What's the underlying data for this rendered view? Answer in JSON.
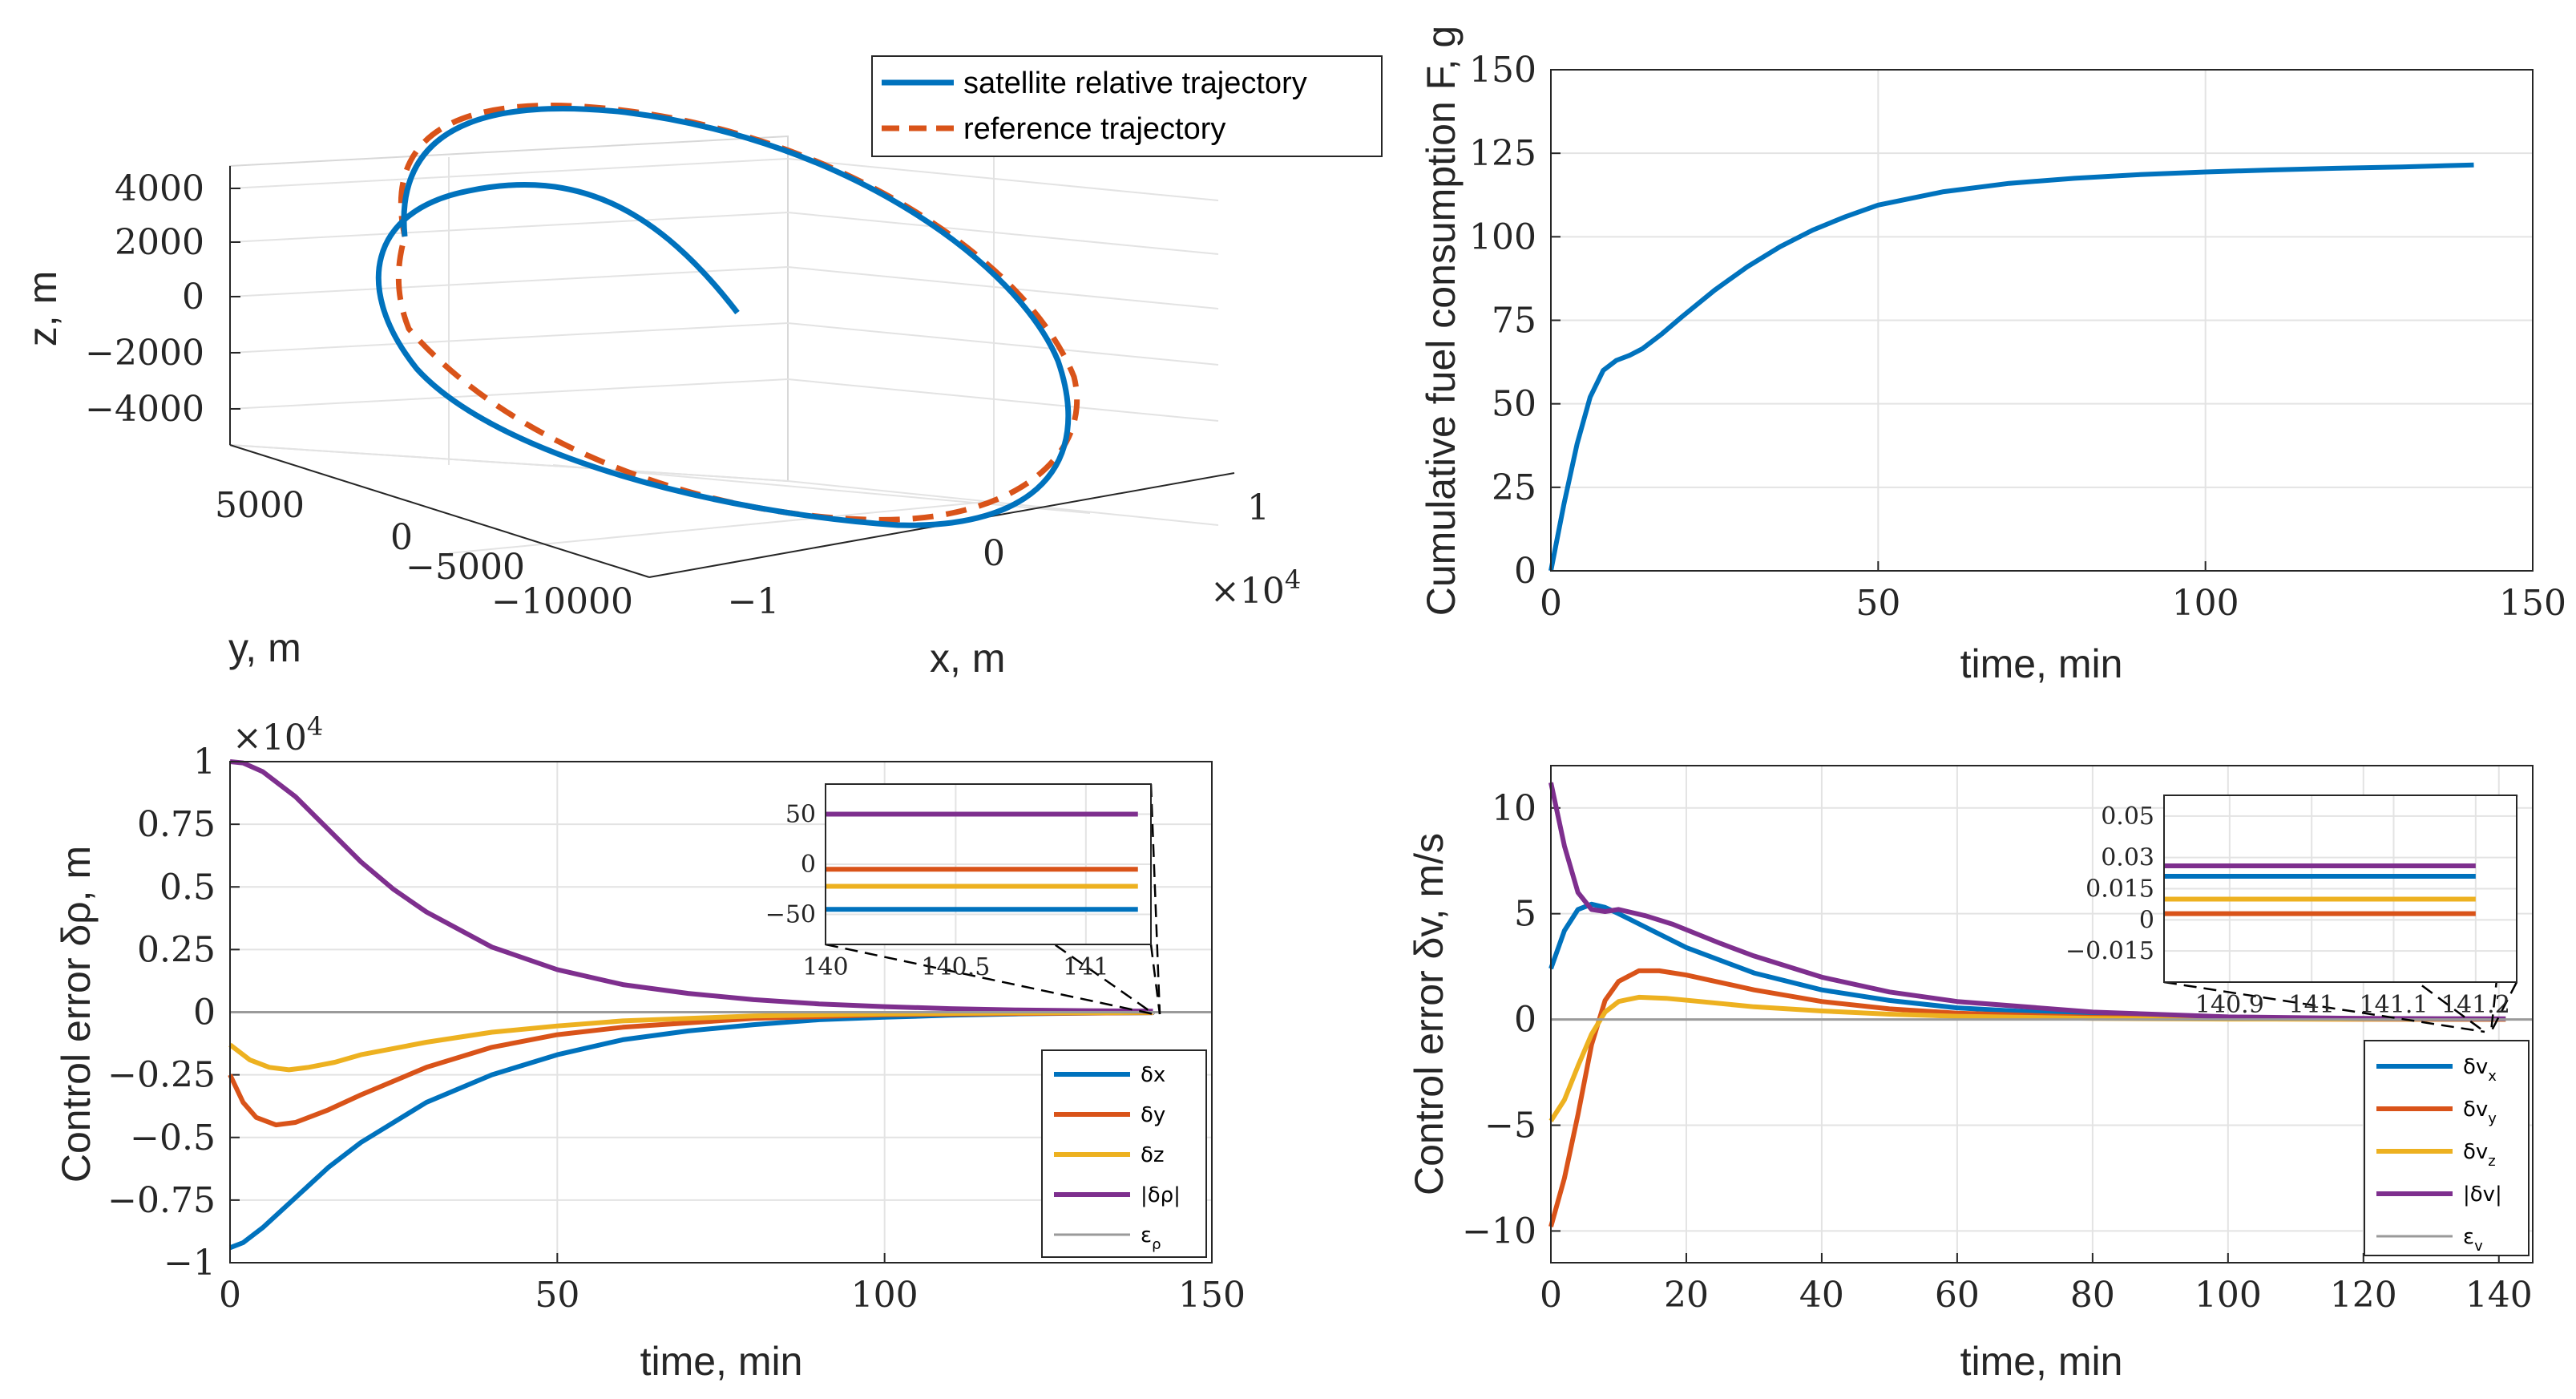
{
  "colors": {
    "blue": "#0072BD",
    "orange": "#D95319",
    "yellow": "#EDB120",
    "purple": "#7E2F8E",
    "gray": "#9a9a9a"
  },
  "chart_data": [
    {
      "id": "tr",
      "type": "line",
      "title": "",
      "xlabel": "time, min",
      "ylabel": "Cumulative fuel consumption F, g",
      "xlim": [
        0,
        150
      ],
      "ylim": [
        0,
        150
      ],
      "xticks": [
        "0",
        "50",
        "100",
        "150"
      ],
      "yticks": [
        "0",
        "25",
        "50",
        "75",
        "100",
        "125",
        "150"
      ],
      "series": [
        {
          "name": "F",
          "color": "blue",
          "x": [
            0,
            2,
            4,
            6,
            8,
            10,
            12,
            14,
            17,
            20,
            25,
            30,
            35,
            40,
            45,
            50,
            60,
            70,
            80,
            90,
            100,
            110,
            120,
            130,
            141
          ],
          "y": [
            0,
            20,
            38,
            52,
            60,
            63,
            64.5,
            66.5,
            71,
            76,
            84,
            91,
            97,
            102,
            106,
            109.5,
            113.5,
            116,
            117.5,
            118.6,
            119.4,
            120,
            120.5,
            120.9,
            121.5
          ]
        }
      ]
    },
    {
      "id": "bl",
      "type": "line",
      "title": "",
      "xlabel": "time, min",
      "ylabel": "Control error δρ, m",
      "exponent": "×10",
      "exponent_power": "4",
      "xlim": [
        0,
        150
      ],
      "ylim": [
        -1,
        1
      ],
      "xticks": [
        "0",
        "50",
        "100",
        "150"
      ],
      "yticks": [
        "−1",
        "−0.75",
        "−0.5",
        "−0.25",
        "0",
        "0.25",
        "0.5",
        "0.75",
        "1"
      ],
      "legend": [
        {
          "label": "δx",
          "color": "blue"
        },
        {
          "label": "δy",
          "color": "orange"
        },
        {
          "label": "δz",
          "color": "yellow"
        },
        {
          "label": "|δρ|",
          "color": "purple"
        },
        {
          "label": "ε",
          "sub": "ρ",
          "color": "gray"
        }
      ],
      "series": [
        {
          "name": "δx",
          "color": "blue",
          "x": [
            0,
            2,
            5,
            10,
            15,
            20,
            30,
            40,
            50,
            60,
            70,
            80,
            90,
            100,
            110,
            120,
            130,
            141
          ],
          "y": [
            -0.94,
            -0.92,
            -0.86,
            -0.74,
            -0.62,
            -0.52,
            -0.36,
            -0.25,
            -0.17,
            -0.11,
            -0.075,
            -0.05,
            -0.03,
            -0.02,
            -0.012,
            -0.007,
            -0.004,
            -0.002
          ]
        },
        {
          "name": "δy",
          "color": "orange",
          "x": [
            0,
            2,
            4,
            7,
            10,
            15,
            20,
            30,
            40,
            50,
            60,
            80,
            100,
            120,
            141
          ],
          "y": [
            -0.25,
            -0.36,
            -0.42,
            -0.45,
            -0.44,
            -0.39,
            -0.33,
            -0.22,
            -0.14,
            -0.09,
            -0.06,
            -0.025,
            -0.01,
            -0.005,
            -0.002
          ]
        },
        {
          "name": "δz",
          "color": "yellow",
          "x": [
            0,
            3,
            6,
            9,
            12,
            16,
            20,
            30,
            40,
            50,
            60,
            80,
            100,
            120,
            141
          ],
          "y": [
            -0.13,
            -0.19,
            -0.22,
            -0.23,
            -0.22,
            -0.2,
            -0.17,
            -0.12,
            -0.08,
            -0.055,
            -0.035,
            -0.015,
            -0.007,
            -0.003,
            -0.001
          ]
        },
        {
          "name": "|δρ|",
          "color": "purple",
          "x": [
            0,
            2,
            5,
            10,
            15,
            20,
            25,
            30,
            40,
            50,
            60,
            70,
            80,
            90,
            100,
            110,
            120,
            130,
            141
          ],
          "y": [
            1.0,
            0.995,
            0.96,
            0.86,
            0.73,
            0.6,
            0.49,
            0.4,
            0.26,
            0.17,
            0.11,
            0.075,
            0.05,
            0.033,
            0.022,
            0.014,
            0.009,
            0.006,
            0.004
          ]
        },
        {
          "name": "ε",
          "color": "gray",
          "x": [
            0,
            150
          ],
          "y": [
            0,
            0
          ]
        }
      ],
      "inset": {
        "xlim": [
          140,
          141.25
        ],
        "ylim": [
          -80,
          80
        ],
        "xticks": [
          "140",
          "140.5",
          "141"
        ],
        "yticks": [
          "−50",
          "0",
          "50"
        ],
        "series": [
          {
            "name": "|δρ|",
            "color": "purple",
            "y": 50
          },
          {
            "name": "δy",
            "color": "orange",
            "y": -5
          },
          {
            "name": "δz",
            "color": "yellow",
            "y": -22
          },
          {
            "name": "δx",
            "color": "blue",
            "y": -45
          }
        ]
      }
    },
    {
      "id": "br",
      "type": "line",
      "title": "",
      "xlabel": "time, min",
      "ylabel": "Control error δv, m/s",
      "xlim": [
        0,
        145
      ],
      "ylim": [
        -11.5,
        12
      ],
      "xticks": [
        "0",
        "20",
        "40",
        "60",
        "80",
        "100",
        "120",
        "140"
      ],
      "yticks": [
        "−10",
        "−5",
        "0",
        "5",
        "10"
      ],
      "legend": [
        {
          "label": "δv",
          "sub": "x",
          "color": "blue"
        },
        {
          "label": "δv",
          "sub": "y",
          "color": "orange"
        },
        {
          "label": "δv",
          "sub": "z",
          "color": "yellow"
        },
        {
          "label": "|δv|",
          "color": "purple"
        },
        {
          "label": "ε",
          "sub": "v",
          "color": "gray"
        }
      ],
      "series": [
        {
          "name": "δvx",
          "color": "blue",
          "x": [
            0,
            2,
            4,
            6,
            8,
            10,
            15,
            20,
            30,
            40,
            50,
            60,
            80,
            100,
            120,
            141
          ],
          "y": [
            2.4,
            4.2,
            5.2,
            5.45,
            5.3,
            5.0,
            4.2,
            3.4,
            2.2,
            1.4,
            0.9,
            0.55,
            0.2,
            0.08,
            0.03,
            0.02
          ]
        },
        {
          "name": "δvy",
          "color": "orange",
          "x": [
            0,
            2,
            4,
            6,
            8,
            10,
            13,
            16,
            20,
            25,
            30,
            40,
            50,
            60,
            80,
            100,
            120,
            141
          ],
          "y": [
            -9.8,
            -7.5,
            -4.5,
            -1.2,
            0.9,
            1.8,
            2.3,
            2.3,
            2.1,
            1.75,
            1.4,
            0.85,
            0.5,
            0.3,
            0.1,
            0.03,
            0.01,
            0.005
          ]
        },
        {
          "name": "δvz",
          "color": "yellow",
          "x": [
            0,
            2,
            4,
            6,
            8,
            10,
            13,
            17,
            22,
            30,
            40,
            50,
            60,
            80,
            100,
            141
          ],
          "y": [
            -4.8,
            -3.8,
            -2.2,
            -0.7,
            0.35,
            0.85,
            1.05,
            1.0,
            0.85,
            0.6,
            0.4,
            0.25,
            0.15,
            0.05,
            0.02,
            0.01
          ]
        },
        {
          "name": "|δv|",
          "color": "purple",
          "x": [
            0,
            2,
            4,
            6,
            8,
            10,
            14,
            18,
            25,
            30,
            40,
            50,
            60,
            80,
            100,
            120,
            141
          ],
          "y": [
            11.2,
            8.2,
            6.0,
            5.2,
            5.1,
            5.2,
            4.9,
            4.5,
            3.6,
            3.0,
            2.0,
            1.3,
            0.85,
            0.35,
            0.12,
            0.05,
            0.03
          ]
        },
        {
          "name": "ε",
          "color": "gray",
          "x": [
            0,
            145
          ],
          "y": [
            0,
            0
          ]
        }
      ],
      "inset": {
        "xlim": [
          140.82,
          141.25
        ],
        "ylim": [
          -0.03,
          0.06
        ],
        "xticks": [
          "140.9",
          "141",
          "141.1",
          "141.2"
        ],
        "yticks": [
          "−0.015",
          "0",
          "0.015",
          "0.03",
          "0.05"
        ],
        "ytick_values": [
          -0.015,
          0,
          0.015,
          0.03,
          0.05
        ],
        "series": [
          {
            "name": "|δv|",
            "color": "purple",
            "y": 0.026
          },
          {
            "name": "δvx",
            "color": "blue",
            "y": 0.021
          },
          {
            "name": "δvz",
            "color": "yellow",
            "y": 0.01
          },
          {
            "name": "δvy",
            "color": "orange",
            "y": 0.003
          }
        ]
      }
    },
    {
      "id": "tl",
      "type": "line",
      "title": "",
      "xlabel": "x, m",
      "ylabel": "z, m",
      "y_axis_label": "y, m",
      "x_exponent": "×10",
      "x_exponent_power": "4",
      "xticks": [
        "−1",
        "0",
        "1"
      ],
      "yticks": [
        "−10000",
        "−5000",
        "0",
        "5000"
      ],
      "zticks": [
        "−4000",
        "−2000",
        "0",
        "2000",
        "4000"
      ],
      "legend": [
        {
          "label": "satellite relative trajectory",
          "color": "blue",
          "style": "solid"
        },
        {
          "label": "reference trajectory",
          "color": "orange",
          "style": "dashed"
        }
      ]
    }
  ]
}
